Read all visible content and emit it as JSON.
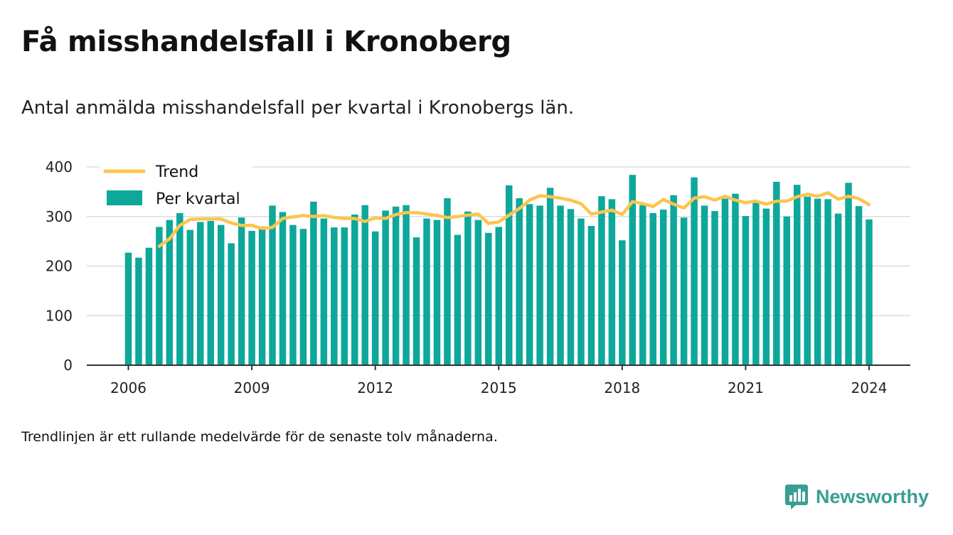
{
  "title": "Få misshandelsfall i Kronoberg",
  "subtitle": "Antal anmälda misshandelsfall per kvartal i Kronobergs län.",
  "note": "Trendlinjen är ett rullande medelvärde för de senaste tolv månaderna.",
  "brand": {
    "name": "Newsworthy",
    "icon": "newsworthy-logo-icon",
    "color": "#3a9e94"
  },
  "colors": {
    "bar": "#0da89b",
    "trend": "#fcc54e",
    "highlight_bar": "#c7ebe8",
    "grid": "#dddddd",
    "axis": "#333333"
  },
  "chart_data": {
    "type": "bar",
    "ylim": [
      0,
      400
    ],
    "yticks": [
      0,
      100,
      200,
      300,
      400
    ],
    "xticks": [
      2006,
      2009,
      2012,
      2015,
      2018,
      2021,
      2024
    ],
    "xlim": [
      2005,
      2025
    ],
    "grid": "horizontal",
    "legend_position": "top-left",
    "legend": [
      "Trend",
      "Per kvartal"
    ],
    "series": [
      {
        "name": "Per kvartal",
        "type": "bar",
        "x": [
          2006.0,
          2006.25,
          2006.5,
          2006.75,
          2007.0,
          2007.25,
          2007.5,
          2007.75,
          2008.0,
          2008.25,
          2008.5,
          2008.75,
          2009.0,
          2009.25,
          2009.5,
          2009.75,
          2010.0,
          2010.25,
          2010.5,
          2010.75,
          2011.0,
          2011.25,
          2011.5,
          2011.75,
          2012.0,
          2012.25,
          2012.5,
          2012.75,
          2013.0,
          2013.25,
          2013.5,
          2013.75,
          2014.0,
          2014.25,
          2014.5,
          2014.75,
          2015.0,
          2015.25,
          2015.5,
          2015.75,
          2016.0,
          2016.25,
          2016.5,
          2016.75,
          2017.0,
          2017.25,
          2017.5,
          2017.75,
          2018.0,
          2018.25,
          2018.5,
          2018.75,
          2019.0,
          2019.25,
          2019.5,
          2019.75,
          2020.0,
          2020.25,
          2020.5,
          2020.75,
          2021.0,
          2021.25,
          2021.5,
          2021.75,
          2022.0,
          2022.25,
          2022.5,
          2022.75,
          2023.0,
          2023.25,
          2023.5,
          2023.75,
          2024.0
        ],
        "values": [
          227,
          217,
          237,
          279,
          293,
          320,
          273,
          289,
          291,
          283,
          246,
          298,
          271,
          280,
          322,
          309,
          283,
          275,
          330,
          296,
          278,
          278,
          304,
          323,
          270,
          312,
          320,
          323,
          258,
          296,
          293,
          337,
          263,
          310,
          293,
          267,
          279,
          363,
          337,
          325,
          322,
          358,
          322,
          315,
          296,
          281,
          341,
          335,
          252,
          384,
          323,
          307,
          314,
          343,
          298,
          379,
          322,
          311,
          336,
          346,
          301,
          329,
          316,
          370,
          300,
          364,
          340,
          336,
          335,
          306,
          368,
          321,
          294
        ]
      },
      {
        "name": "Trend",
        "type": "line",
        "x": [
          2006.75,
          2007.0,
          2007.25,
          2007.5,
          2007.75,
          2008.0,
          2008.25,
          2008.5,
          2008.75,
          2009.0,
          2009.25,
          2009.5,
          2009.75,
          2010.0,
          2010.25,
          2010.5,
          2010.75,
          2011.0,
          2011.25,
          2011.5,
          2011.75,
          2012.0,
          2012.25,
          2012.5,
          2012.75,
          2013.0,
          2013.25,
          2013.5,
          2013.75,
          2014.0,
          2014.25,
          2014.5,
          2014.75,
          2015.0,
          2015.25,
          2015.5,
          2015.75,
          2016.0,
          2016.25,
          2016.5,
          2016.75,
          2017.0,
          2017.25,
          2017.5,
          2017.75,
          2018.0,
          2018.25,
          2018.5,
          2018.75,
          2019.0,
          2019.25,
          2019.5,
          2019.75,
          2020.0,
          2020.25,
          2020.5,
          2020.75,
          2021.0,
          2021.25,
          2021.5,
          2021.75,
          2022.0,
          2022.25,
          2022.5,
          2022.75,
          2023.0,
          2023.25,
          2023.5,
          2023.75,
          2024.0
        ],
        "values": [
          240,
          255,
          282,
          294,
          295,
          295,
          295,
          287,
          282,
          282,
          276,
          278,
          296,
          299,
          302,
          300,
          302,
          298,
          296,
          296,
          290,
          297,
          296,
          304,
          308,
          308,
          305,
          302,
          298,
          300,
          303,
          305,
          286,
          289,
          303,
          316,
          333,
          342,
          340,
          337,
          333,
          326,
          305,
          309,
          313,
          304,
          330,
          326,
          320,
          334,
          325,
          317,
          337,
          340,
          333,
          341,
          333,
          328,
          331,
          325,
          331,
          331,
          340,
          345,
          341,
          348,
          335,
          341,
          336,
          324
        ]
      }
    ]
  }
}
